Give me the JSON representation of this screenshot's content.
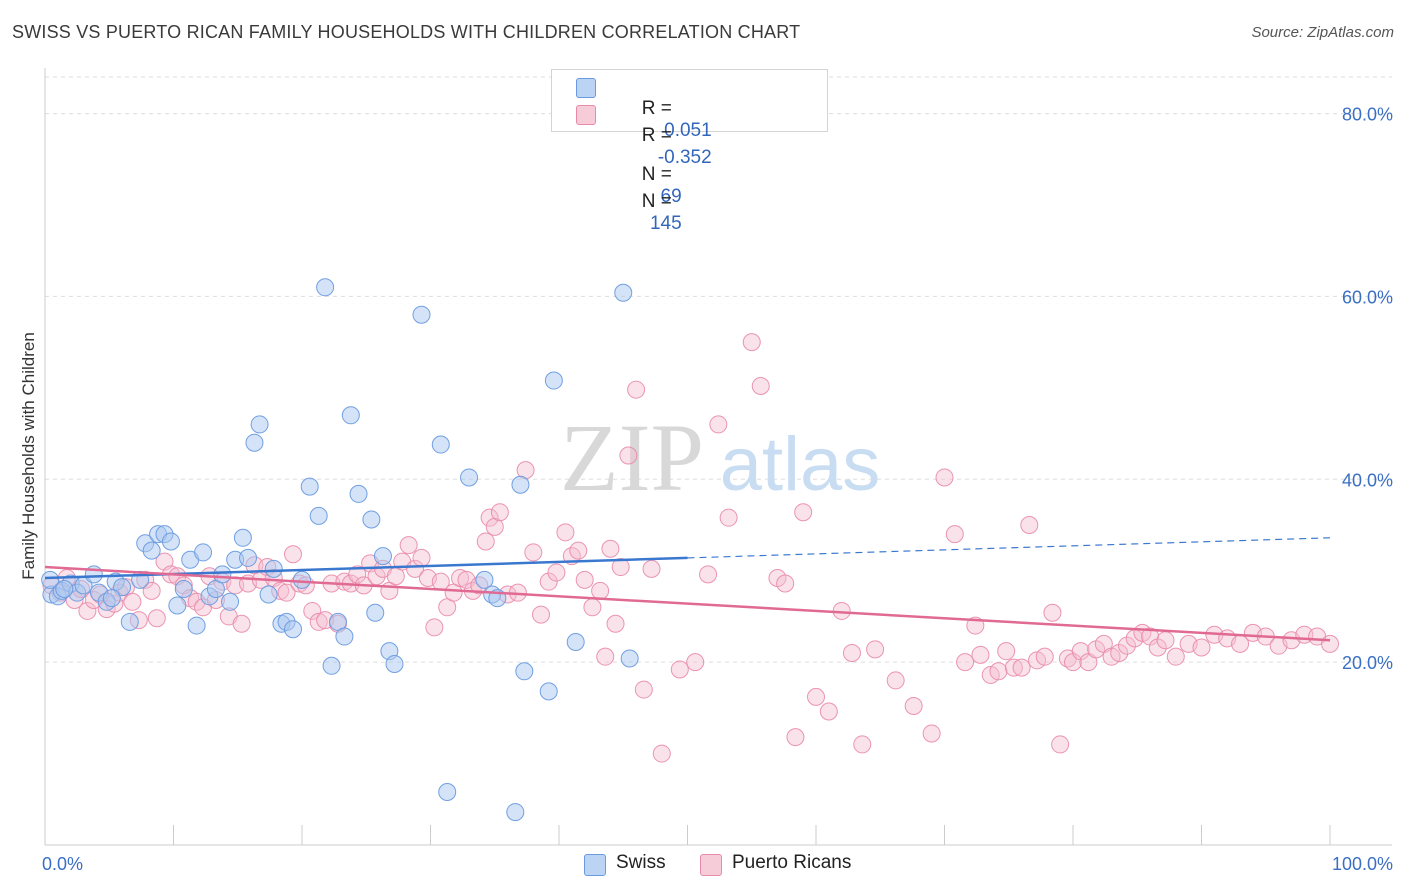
{
  "title": "SWISS VS PUERTO RICAN FAMILY HOUSEHOLDS WITH CHILDREN CORRELATION CHART",
  "source": "Source: ZipAtlas.com",
  "watermark": {
    "zip": "ZIP",
    "atlas": "atlas"
  },
  "legend": {
    "swiss": {
      "r_label": "R =",
      "r_value": "0.051",
      "n_label": "N =",
      "n_value": "69"
    },
    "pr": {
      "r_label": "R =",
      "r_value": "-0.352",
      "n_label": "N =",
      "n_value": "145"
    }
  },
  "colors": {
    "swiss_fill": "#a9c8f0",
    "swiss_stroke": "#6a9be0",
    "swiss_line": "#3a78d0",
    "pr_fill": "#f5bfd0",
    "pr_stroke": "#e98aaa",
    "pr_line": "#e06a93",
    "grid": "#dddddd",
    "axis_text": "#3a6fc4"
  },
  "chart_data": {
    "type": "scatter",
    "title": "SWISS VS PUERTO RICAN FAMILY HOUSEHOLDS WITH CHILDREN CORRELATION CHART",
    "xlabel": "",
    "ylabel": "Family Households with Children",
    "xlim": [
      0,
      100
    ],
    "ylim": [
      0,
      84
    ],
    "x_tick_labels": [
      "0.0%",
      "100.0%"
    ],
    "y_ticks": [
      20,
      40,
      60,
      80
    ],
    "y_tick_labels": [
      "20.0%",
      "40.0%",
      "60.0%",
      "80.0%"
    ],
    "legend_entries": [
      "Swiss",
      "Puerto Ricans"
    ],
    "series": [
      {
        "name": "Swiss",
        "r": 0.051,
        "n": 69,
        "trend": {
          "x0": 0,
          "y0": 29.2,
          "x1": 50,
          "y1": 31.4,
          "x_dash_end": 100,
          "y_dash_end": 33.6
        },
        "points": [
          [
            0.5,
            27.4
          ],
          [
            1.0,
            27.2
          ],
          [
            1.3,
            27.8
          ],
          [
            2.0,
            28.6
          ],
          [
            2.5,
            27.6
          ],
          [
            3.0,
            28.4
          ],
          [
            3.8,
            29.6
          ],
          [
            4.2,
            27.6
          ],
          [
            4.8,
            26.6
          ],
          [
            5.5,
            28.8
          ],
          [
            6.0,
            28.2
          ],
          [
            6.6,
            24.4
          ],
          [
            7.4,
            29.0
          ],
          [
            7.8,
            33.0
          ],
          [
            8.3,
            32.2
          ],
          [
            8.8,
            34.0
          ],
          [
            9.3,
            34.0
          ],
          [
            9.8,
            33.2
          ],
          [
            10.3,
            26.2
          ],
          [
            10.8,
            28.0
          ],
          [
            11.3,
            31.2
          ],
          [
            11.8,
            24.0
          ],
          [
            12.3,
            32.0
          ],
          [
            12.8,
            27.2
          ],
          [
            13.3,
            28.0
          ],
          [
            13.8,
            29.6
          ],
          [
            14.4,
            26.6
          ],
          [
            14.8,
            31.2
          ],
          [
            15.4,
            33.6
          ],
          [
            15.8,
            31.4
          ],
          [
            16.3,
            44.0
          ],
          [
            16.7,
            46.0
          ],
          [
            17.4,
            27.4
          ],
          [
            17.8,
            30.2
          ],
          [
            18.4,
            24.2
          ],
          [
            18.8,
            24.4
          ],
          [
            19.3,
            23.6
          ],
          [
            20.0,
            29.0
          ],
          [
            20.6,
            39.2
          ],
          [
            21.3,
            36.0
          ],
          [
            21.8,
            61.0
          ],
          [
            22.3,
            19.6
          ],
          [
            22.8,
            24.4
          ],
          [
            23.3,
            22.8
          ],
          [
            23.8,
            47.0
          ],
          [
            24.4,
            38.4
          ],
          [
            25.4,
            35.6
          ],
          [
            25.7,
            25.4
          ],
          [
            26.3,
            31.6
          ],
          [
            26.8,
            21.2
          ],
          [
            27.2,
            19.8
          ],
          [
            29.3,
            58.0
          ],
          [
            30.8,
            43.8
          ],
          [
            31.3,
            5.8
          ],
          [
            33.0,
            40.2
          ],
          [
            34.2,
            29.0
          ],
          [
            34.8,
            27.4
          ],
          [
            35.2,
            27.0
          ],
          [
            36.6,
            3.6
          ],
          [
            37.0,
            39.4
          ],
          [
            37.3,
            19.0
          ],
          [
            39.2,
            16.8
          ],
          [
            39.6,
            50.8
          ],
          [
            41.3,
            22.2
          ],
          [
            45.0,
            60.4
          ],
          [
            45.5,
            20.4
          ],
          [
            0.4,
            29.0
          ],
          [
            1.5,
            28.0
          ],
          [
            5.2,
            27.0
          ]
        ]
      },
      {
        "name": "Puerto Ricans",
        "r": -0.352,
        "n": 145,
        "trend": {
          "x0": 0,
          "y0": 30.4,
          "x1": 100,
          "y1": 22.4
        },
        "points": [
          [
            0.5,
            28.4
          ],
          [
            1.2,
            27.6
          ],
          [
            1.7,
            29.2
          ],
          [
            2.3,
            26.8
          ],
          [
            2.8,
            28.0
          ],
          [
            3.3,
            25.6
          ],
          [
            3.8,
            26.8
          ],
          [
            4.3,
            27.4
          ],
          [
            4.8,
            25.8
          ],
          [
            5.4,
            26.4
          ],
          [
            5.8,
            27.6
          ],
          [
            6.3,
            28.2
          ],
          [
            6.8,
            26.6
          ],
          [
            7.3,
            24.6
          ],
          [
            7.8,
            29.0
          ],
          [
            8.3,
            27.8
          ],
          [
            8.7,
            24.8
          ],
          [
            9.3,
            31.0
          ],
          [
            9.8,
            29.6
          ],
          [
            10.3,
            29.4
          ],
          [
            10.8,
            28.4
          ],
          [
            11.3,
            27.0
          ],
          [
            11.8,
            26.6
          ],
          [
            12.3,
            26.0
          ],
          [
            12.8,
            29.4
          ],
          [
            13.3,
            26.8
          ],
          [
            13.8,
            28.8
          ],
          [
            14.3,
            25.0
          ],
          [
            14.8,
            28.4
          ],
          [
            15.3,
            24.2
          ],
          [
            15.8,
            28.6
          ],
          [
            16.3,
            30.6
          ],
          [
            16.8,
            29.0
          ],
          [
            17.3,
            30.4
          ],
          [
            17.8,
            29.2
          ],
          [
            18.3,
            27.8
          ],
          [
            18.8,
            27.6
          ],
          [
            19.3,
            31.8
          ],
          [
            19.8,
            28.6
          ],
          [
            20.3,
            28.4
          ],
          [
            20.8,
            25.6
          ],
          [
            21.3,
            24.4
          ],
          [
            21.8,
            24.6
          ],
          [
            22.3,
            28.6
          ],
          [
            22.8,
            24.2
          ],
          [
            23.3,
            28.8
          ],
          [
            23.8,
            28.6
          ],
          [
            24.3,
            29.6
          ],
          [
            24.8,
            28.4
          ],
          [
            25.3,
            30.8
          ],
          [
            25.8,
            29.4
          ],
          [
            26.3,
            30.2
          ],
          [
            26.8,
            27.8
          ],
          [
            27.3,
            29.4
          ],
          [
            27.8,
            31.0
          ],
          [
            28.3,
            32.8
          ],
          [
            28.8,
            30.2
          ],
          [
            29.3,
            31.4
          ],
          [
            29.8,
            29.2
          ],
          [
            30.3,
            23.8
          ],
          [
            30.8,
            28.8
          ],
          [
            31.3,
            26.0
          ],
          [
            31.8,
            27.6
          ],
          [
            32.3,
            29.2
          ],
          [
            32.8,
            29.0
          ],
          [
            33.3,
            27.8
          ],
          [
            33.8,
            28.4
          ],
          [
            34.3,
            33.2
          ],
          [
            34.6,
            35.8
          ],
          [
            35.0,
            34.8
          ],
          [
            35.4,
            36.4
          ],
          [
            36.0,
            27.4
          ],
          [
            36.8,
            27.6
          ],
          [
            37.4,
            41.0
          ],
          [
            38.0,
            32.0
          ],
          [
            38.6,
            25.2
          ],
          [
            39.2,
            28.8
          ],
          [
            39.8,
            29.8
          ],
          [
            40.5,
            34.2
          ],
          [
            41.0,
            31.6
          ],
          [
            41.5,
            32.2
          ],
          [
            42.0,
            29.0
          ],
          [
            42.6,
            26.0
          ],
          [
            43.2,
            27.8
          ],
          [
            43.6,
            20.6
          ],
          [
            44.0,
            32.4
          ],
          [
            44.4,
            24.2
          ],
          [
            44.8,
            30.4
          ],
          [
            45.4,
            42.6
          ],
          [
            46.0,
            49.8
          ],
          [
            46.6,
            17.0
          ],
          [
            47.2,
            30.2
          ],
          [
            48.0,
            10.0
          ],
          [
            49.4,
            19.2
          ],
          [
            50.6,
            20.0
          ],
          [
            51.6,
            29.6
          ],
          [
            52.4,
            46.0
          ],
          [
            53.2,
            35.8
          ],
          [
            55.0,
            55.0
          ],
          [
            55.7,
            50.2
          ],
          [
            57.0,
            29.2
          ],
          [
            57.6,
            28.6
          ],
          [
            58.4,
            11.8
          ],
          [
            59.0,
            36.4
          ],
          [
            60.0,
            16.2
          ],
          [
            61.0,
            14.6
          ],
          [
            62.0,
            25.6
          ],
          [
            62.8,
            21.0
          ],
          [
            63.6,
            11.0
          ],
          [
            64.6,
            21.4
          ],
          [
            66.2,
            18.0
          ],
          [
            67.6,
            15.2
          ],
          [
            69.0,
            12.2
          ],
          [
            70.0,
            40.2
          ],
          [
            70.8,
            34.0
          ],
          [
            71.6,
            20.0
          ],
          [
            72.4,
            24.0
          ],
          [
            72.8,
            20.8
          ],
          [
            73.6,
            18.6
          ],
          [
            74.2,
            19.0
          ],
          [
            74.8,
            21.2
          ],
          [
            75.4,
            19.4
          ],
          [
            76.0,
            19.4
          ],
          [
            76.6,
            35.0
          ],
          [
            77.2,
            20.2
          ],
          [
            77.8,
            20.6
          ],
          [
            78.4,
            25.4
          ],
          [
            79.0,
            11.0
          ],
          [
            79.6,
            20.4
          ],
          [
            80.0,
            20.0
          ],
          [
            80.6,
            21.2
          ],
          [
            81.2,
            20.0
          ],
          [
            81.8,
            21.4
          ],
          [
            82.4,
            22.0
          ],
          [
            83.0,
            20.6
          ],
          [
            83.6,
            21.0
          ],
          [
            84.2,
            21.8
          ],
          [
            84.8,
            22.6
          ],
          [
            85.4,
            23.2
          ],
          [
            86.0,
            22.8
          ],
          [
            86.6,
            21.6
          ],
          [
            87.2,
            22.4
          ],
          [
            88.0,
            20.6
          ],
          [
            89.0,
            22.0
          ],
          [
            90.0,
            21.6
          ],
          [
            91.0,
            23.0
          ],
          [
            92.0,
            22.6
          ],
          [
            93.0,
            22.0
          ],
          [
            94.0,
            23.2
          ],
          [
            95.0,
            22.8
          ],
          [
            96.0,
            21.8
          ],
          [
            97.0,
            22.4
          ],
          [
            98.0,
            23.0
          ],
          [
            99.0,
            22.8
          ],
          [
            100.0,
            22.0
          ]
        ]
      }
    ]
  }
}
